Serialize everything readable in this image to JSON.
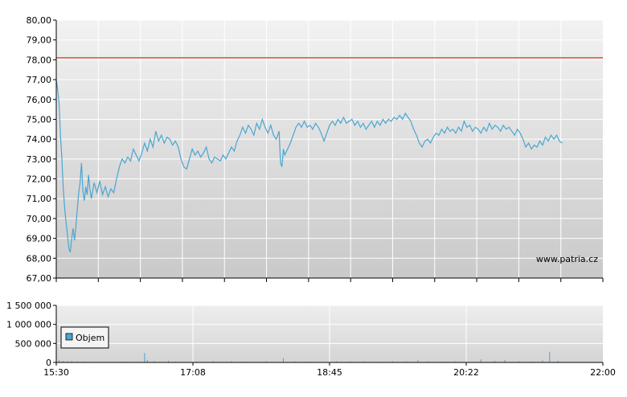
{
  "watermark": "www.patria.cz",
  "chart_data": [
    {
      "type": "line",
      "title": "",
      "ylim": [
        67,
        80
      ],
      "y_ticks": [
        "67,00",
        "68,00",
        "69,00",
        "70,00",
        "71,00",
        "72,00",
        "73,00",
        "74,00",
        "75,00",
        "76,00",
        "77,00",
        "78,00",
        "79,00",
        "80,00"
      ],
      "reference_line": {
        "value": 78.1,
        "color": "#e0503c"
      },
      "line_color": "#4aa6d0",
      "x_range_minutes": [
        0,
        390
      ],
      "grid": true,
      "series": [
        {
          "points": [
            [
              0,
              77.0
            ],
            [
              1,
              76.5
            ],
            [
              2,
              75.8
            ],
            [
              3,
              74.2
            ],
            [
              4,
              73.0
            ],
            [
              5,
              71.5
            ],
            [
              6,
              70.5
            ],
            [
              7,
              69.8
            ],
            [
              8,
              69.2
            ],
            [
              9,
              68.5
            ],
            [
              10,
              68.3
            ],
            [
              11,
              69.0
            ],
            [
              12,
              69.5
            ],
            [
              13,
              68.9
            ],
            [
              14,
              69.6
            ],
            [
              15,
              70.5
            ],
            [
              16,
              71.3
            ],
            [
              17,
              71.8
            ],
            [
              18,
              72.8
            ],
            [
              19,
              71.4
            ],
            [
              20,
              70.9
            ],
            [
              21,
              71.6
            ],
            [
              22,
              71.2
            ],
            [
              23,
              72.2
            ],
            [
              24,
              71.5
            ],
            [
              25,
              71.0
            ],
            [
              27,
              71.8
            ],
            [
              29,
              71.3
            ],
            [
              31,
              71.9
            ],
            [
              33,
              71.2
            ],
            [
              35,
              71.6
            ],
            [
              37,
              71.1
            ],
            [
              39,
              71.5
            ],
            [
              41,
              71.3
            ],
            [
              43,
              72.0
            ],
            [
              45,
              72.6
            ],
            [
              47,
              73.0
            ],
            [
              49,
              72.8
            ],
            [
              51,
              73.1
            ],
            [
              53,
              72.9
            ],
            [
              55,
              73.5
            ],
            [
              57,
              73.2
            ],
            [
              59,
              72.9
            ],
            [
              61,
              73.3
            ],
            [
              63,
              73.8
            ],
            [
              65,
              73.4
            ],
            [
              67,
              74.0
            ],
            [
              69,
              73.6
            ],
            [
              71,
              74.4
            ],
            [
              73,
              73.9
            ],
            [
              75,
              74.2
            ],
            [
              77,
              73.8
            ],
            [
              79,
              74.1
            ],
            [
              81,
              74.0
            ],
            [
              83,
              73.7
            ],
            [
              85,
              73.9
            ],
            [
              87,
              73.6
            ],
            [
              89,
              73.0
            ],
            [
              91,
              72.6
            ],
            [
              93,
              72.5
            ],
            [
              95,
              73.0
            ],
            [
              97,
              73.5
            ],
            [
              99,
              73.2
            ],
            [
              101,
              73.4
            ],
            [
              103,
              73.1
            ],
            [
              105,
              73.3
            ],
            [
              107,
              73.6
            ],
            [
              109,
              73.0
            ],
            [
              111,
              72.8
            ],
            [
              113,
              73.1
            ],
            [
              115,
              73.0
            ],
            [
              117,
              72.9
            ],
            [
              119,
              73.2
            ],
            [
              121,
              73.0
            ],
            [
              123,
              73.3
            ],
            [
              125,
              73.6
            ],
            [
              127,
              73.4
            ],
            [
              129,
              73.9
            ],
            [
              131,
              74.2
            ],
            [
              133,
              74.6
            ],
            [
              135,
              74.3
            ],
            [
              137,
              74.7
            ],
            [
              139,
              74.5
            ],
            [
              141,
              74.2
            ],
            [
              143,
              74.8
            ],
            [
              145,
              74.5
            ],
            [
              147,
              75.0
            ],
            [
              149,
              74.6
            ],
            [
              151,
              74.3
            ],
            [
              153,
              74.7
            ],
            [
              155,
              74.2
            ],
            [
              157,
              74.0
            ],
            [
              159,
              74.4
            ],
            [
              160,
              72.8
            ],
            [
              161,
              72.6
            ],
            [
              162,
              73.5
            ],
            [
              163,
              73.2
            ],
            [
              165,
              73.5
            ],
            [
              167,
              73.8
            ],
            [
              169,
              74.2
            ],
            [
              171,
              74.6
            ],
            [
              173,
              74.8
            ],
            [
              175,
              74.6
            ],
            [
              177,
              74.9
            ],
            [
              179,
              74.6
            ],
            [
              181,
              74.7
            ],
            [
              183,
              74.5
            ],
            [
              185,
              74.8
            ],
            [
              187,
              74.6
            ],
            [
              189,
              74.3
            ],
            [
              191,
              73.9
            ],
            [
              193,
              74.3
            ],
            [
              195,
              74.7
            ],
            [
              197,
              74.9
            ],
            [
              199,
              74.7
            ],
            [
              201,
              75.0
            ],
            [
              203,
              74.8
            ],
            [
              205,
              75.1
            ],
            [
              207,
              74.8
            ],
            [
              209,
              74.9
            ],
            [
              211,
              75.0
            ],
            [
              213,
              74.7
            ],
            [
              215,
              74.9
            ],
            [
              217,
              74.6
            ],
            [
              219,
              74.8
            ],
            [
              221,
              74.5
            ],
            [
              223,
              74.7
            ],
            [
              225,
              74.9
            ],
            [
              227,
              74.6
            ],
            [
              229,
              74.9
            ],
            [
              231,
              74.7
            ],
            [
              233,
              75.0
            ],
            [
              235,
              74.8
            ],
            [
              237,
              75.0
            ],
            [
              239,
              74.9
            ],
            [
              241,
              75.1
            ],
            [
              243,
              75.0
            ],
            [
              245,
              75.2
            ],
            [
              247,
              75.0
            ],
            [
              249,
              75.3
            ],
            [
              251,
              75.1
            ],
            [
              253,
              74.9
            ],
            [
              255,
              74.5
            ],
            [
              257,
              74.2
            ],
            [
              259,
              73.8
            ],
            [
              261,
              73.6
            ],
            [
              263,
              73.9
            ],
            [
              265,
              74.0
            ],
            [
              267,
              73.8
            ],
            [
              269,
              74.1
            ],
            [
              271,
              74.3
            ],
            [
              273,
              74.2
            ],
            [
              275,
              74.5
            ],
            [
              277,
              74.3
            ],
            [
              279,
              74.6
            ],
            [
              281,
              74.4
            ],
            [
              283,
              74.5
            ],
            [
              285,
              74.3
            ],
            [
              287,
              74.6
            ],
            [
              289,
              74.4
            ],
            [
              291,
              74.9
            ],
            [
              293,
              74.6
            ],
            [
              295,
              74.7
            ],
            [
              297,
              74.4
            ],
            [
              299,
              74.6
            ],
            [
              301,
              74.5
            ],
            [
              303,
              74.3
            ],
            [
              305,
              74.6
            ],
            [
              307,
              74.4
            ],
            [
              309,
              74.8
            ],
            [
              311,
              74.5
            ],
            [
              313,
              74.7
            ],
            [
              315,
              74.6
            ],
            [
              317,
              74.4
            ],
            [
              319,
              74.7
            ],
            [
              321,
              74.5
            ],
            [
              323,
              74.6
            ],
            [
              325,
              74.4
            ],
            [
              327,
              74.2
            ],
            [
              329,
              74.5
            ],
            [
              331,
              74.3
            ],
            [
              333,
              74.0
            ],
            [
              335,
              73.6
            ],
            [
              337,
              73.8
            ],
            [
              339,
              73.5
            ],
            [
              341,
              73.7
            ],
            [
              343,
              73.6
            ],
            [
              345,
              73.9
            ],
            [
              347,
              73.7
            ],
            [
              349,
              74.1
            ],
            [
              351,
              73.9
            ],
            [
              353,
              74.2
            ],
            [
              355,
              74.0
            ],
            [
              357,
              74.2
            ],
            [
              359,
              73.9
            ],
            [
              361,
              73.8
            ]
          ]
        }
      ]
    },
    {
      "type": "bar",
      "title": "",
      "series_label": "Objem",
      "ylim": [
        0,
        1500000
      ],
      "y_ticks": [
        "0",
        "500 000",
        "1 000 000",
        "1 500 000"
      ],
      "x_ticks": [
        "15:30",
        "17:08",
        "18:45",
        "20:22",
        "22:00"
      ],
      "x_range_minutes": [
        0,
        390
      ],
      "bar_color": "#4aa6d0",
      "grid": true,
      "volumes": [
        [
          2,
          60000
        ],
        [
          5,
          40000
        ],
        [
          8,
          30000
        ],
        [
          11,
          35000
        ],
        [
          15,
          25000
        ],
        [
          20,
          20000
        ],
        [
          25,
          15000
        ],
        [
          35,
          12000
        ],
        [
          50,
          20000
        ],
        [
          60,
          15000
        ],
        [
          63,
          250000
        ],
        [
          65,
          60000
        ],
        [
          70,
          30000
        ],
        [
          80,
          40000
        ],
        [
          85,
          20000
        ],
        [
          92,
          15000
        ],
        [
          100,
          20000
        ],
        [
          112,
          30000
        ],
        [
          125,
          35000
        ],
        [
          135,
          20000
        ],
        [
          150,
          25000
        ],
        [
          162,
          110000
        ],
        [
          170,
          30000
        ],
        [
          178,
          20000
        ],
        [
          190,
          15000
        ],
        [
          200,
          30000
        ],
        [
          210,
          20000
        ],
        [
          220,
          25000
        ],
        [
          230,
          15000
        ],
        [
          240,
          30000
        ],
        [
          250,
          20000
        ],
        [
          258,
          60000
        ],
        [
          265,
          30000
        ],
        [
          275,
          20000
        ],
        [
          285,
          25000
        ],
        [
          295,
          15000
        ],
        [
          303,
          80000
        ],
        [
          313,
          40000
        ],
        [
          320,
          60000
        ],
        [
          330,
          30000
        ],
        [
          340,
          20000
        ],
        [
          347,
          50000
        ],
        [
          352,
          280000
        ],
        [
          358,
          40000
        ]
      ]
    }
  ]
}
